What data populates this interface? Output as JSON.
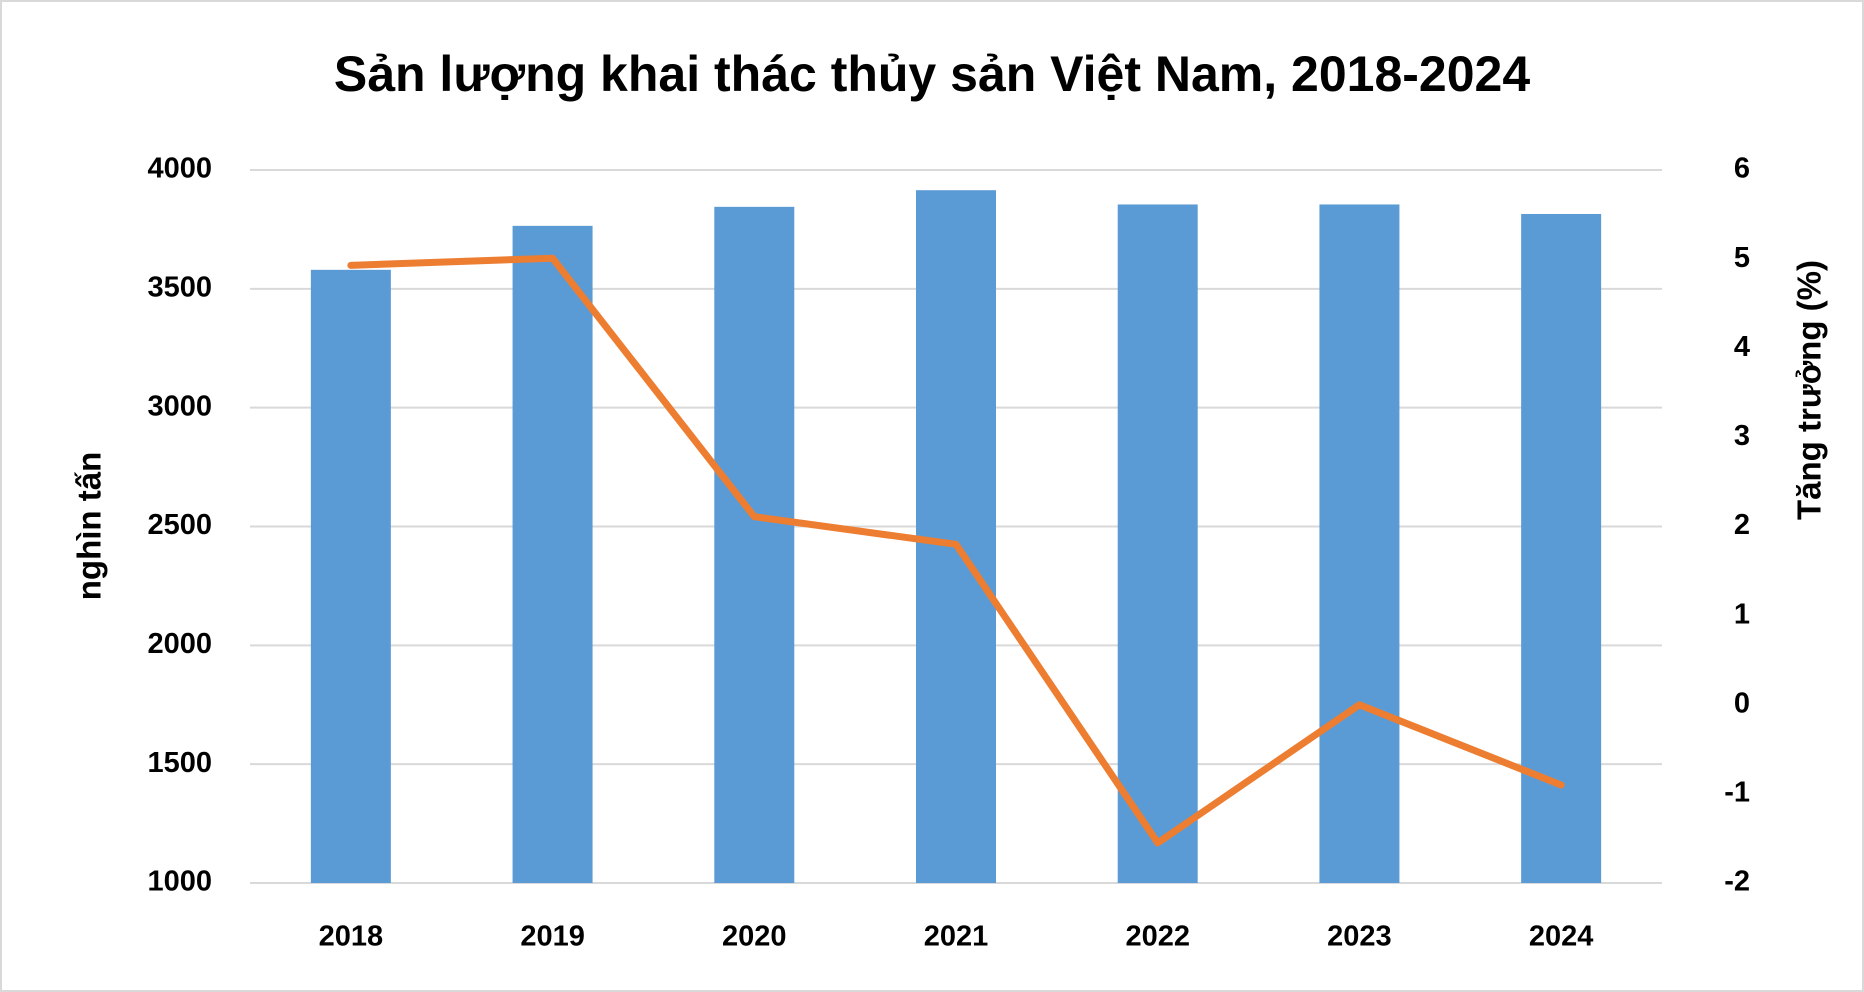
{
  "chart_data": {
    "type": "bar-line",
    "title": "Sản lượng khai thác thủy sản Việt Nam, 2018-2024",
    "y_label": "nghìn tấn",
    "y2_label": "Tăng trưởng (%)",
    "categories": [
      "2018",
      "2019",
      "2020",
      "2021",
      "2022",
      "2023",
      "2024"
    ],
    "series": [
      {
        "type": "bar",
        "color": "#5b9bd5",
        "values": [
          3580,
          3765,
          3845,
          3915,
          3855,
          3855,
          3815
        ]
      },
      {
        "type": "line",
        "color": "#ed7d31",
        "axis": "y2",
        "values": [
          4.93,
          5.01,
          2.11,
          1.8,
          -1.55,
          0,
          -0.9
        ]
      }
    ],
    "ylim": [
      1000,
      4000
    ],
    "yticks": [
      1000,
      1500,
      2000,
      2500,
      3000,
      3500,
      4000
    ],
    "y2lim": [
      -2,
      6
    ],
    "y2ticks": [
      -2,
      -1,
      0,
      1,
      2,
      3,
      4,
      5,
      6
    ],
    "grid": true
  }
}
